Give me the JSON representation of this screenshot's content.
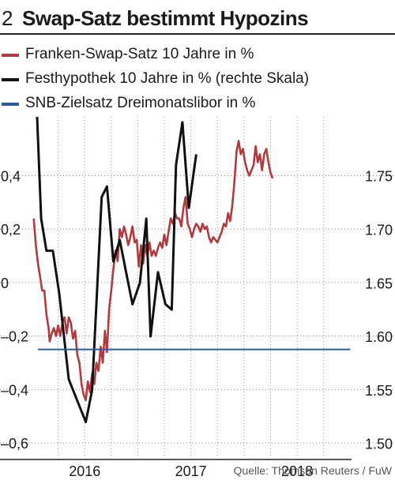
{
  "header": {
    "number": "2",
    "title": "Swap-Satz bestimmt Hypozins"
  },
  "legend": [
    {
      "label": "Franken-Swap-Satz 10 Jahre in %",
      "color": "#b03a3e"
    },
    {
      "label": "Festhypothek 10 Jahre in % (rechte Skala)",
      "color": "#111111"
    },
    {
      "label": "SNB-Zielsatz Dreimonatslibor in %",
      "color": "#2b5a9e"
    }
  ],
  "source": "Quelle: Thomson Reuters / FuW",
  "chart_data": {
    "type": "line",
    "x_unit": "years",
    "xlim": [
      2015.5,
      2018.55
    ],
    "x_ticks": [
      {
        "value": 2016,
        "label": "2016"
      },
      {
        "value": 2017,
        "label": "2017"
      },
      {
        "value": 2018,
        "label": "2018"
      }
    ],
    "left_axis": {
      "ylim": [
        -0.65,
        0.62
      ],
      "ticks": [
        0.4,
        0.2,
        0,
        -0.2,
        -0.4,
        -0.6
      ],
      "tick_labels": [
        "0,4",
        "0,2",
        "0",
        "–0,2",
        "–0,4",
        "–0,6"
      ]
    },
    "right_axis": {
      "ylim": [
        1.488,
        1.805
      ],
      "ticks": [
        1.75,
        1.7,
        1.65,
        1.6,
        1.55,
        1.5
      ],
      "tick_labels": [
        "1.75",
        "1.70",
        "1.65",
        "1.60",
        "1.55",
        "1.50"
      ]
    },
    "grid": "vertical dotted",
    "series": [
      {
        "name": "Franken-Swap-Satz 10 Jahre in %",
        "axis": "left",
        "color": "#b03a3e",
        "points": [
          [
            2015.52,
            0.24
          ],
          [
            2015.54,
            0.14
          ],
          [
            2015.56,
            0.07
          ],
          [
            2015.58,
            0.02
          ],
          [
            2015.6,
            -0.03
          ],
          [
            2015.62,
            -0.03
          ],
          [
            2015.64,
            -0.12
          ],
          [
            2015.66,
            -0.17
          ],
          [
            2015.67,
            -0.22
          ],
          [
            2015.69,
            -0.19
          ],
          [
            2015.71,
            -0.17
          ],
          [
            2015.73,
            -0.2
          ],
          [
            2015.75,
            -0.16
          ],
          [
            2015.77,
            -0.2
          ],
          [
            2015.79,
            -0.15
          ],
          [
            2015.81,
            -0.13
          ],
          [
            2015.83,
            -0.19
          ],
          [
            2015.85,
            -0.13
          ],
          [
            2015.87,
            -0.15
          ],
          [
            2015.89,
            -0.21
          ],
          [
            2015.91,
            -0.18
          ],
          [
            2015.93,
            -0.27
          ],
          [
            2015.95,
            -0.3
          ],
          [
            2015.97,
            -0.38
          ],
          [
            2015.99,
            -0.42
          ],
          [
            2016.01,
            -0.44
          ],
          [
            2016.03,
            -0.37
          ],
          [
            2016.05,
            -0.41
          ],
          [
            2016.07,
            -0.34
          ],
          [
            2016.09,
            -0.38
          ],
          [
            2016.11,
            -0.3
          ],
          [
            2016.13,
            -0.33
          ],
          [
            2016.15,
            -0.24
          ],
          [
            2016.17,
            -0.3
          ],
          [
            2016.19,
            -0.18
          ],
          [
            2016.21,
            -0.26
          ],
          [
            2016.23,
            -0.1
          ],
          [
            2016.25,
            -0.03
          ],
          [
            2016.27,
            0.05
          ],
          [
            2016.29,
            0.12
          ],
          [
            2016.31,
            0.08
          ],
          [
            2016.33,
            0.2
          ],
          [
            2016.35,
            0.17
          ],
          [
            2016.37,
            0.21
          ],
          [
            2016.39,
            0.18
          ],
          [
            2016.41,
            0.14
          ],
          [
            2016.43,
            0.17
          ],
          [
            2016.45,
            0.21
          ],
          [
            2016.47,
            0.15
          ],
          [
            2016.49,
            0.16
          ],
          [
            2016.51,
            0.06
          ],
          [
            2016.53,
            0.14
          ],
          [
            2016.55,
            0.07
          ],
          [
            2016.57,
            0.14
          ],
          [
            2016.59,
            0.1
          ],
          [
            2016.61,
            0.15
          ],
          [
            2016.63,
            0.1
          ],
          [
            2016.65,
            0.12
          ],
          [
            2016.67,
            0.1
          ],
          [
            2016.69,
            0.13
          ],
          [
            2016.71,
            0.15
          ],
          [
            2016.73,
            0.13
          ],
          [
            2016.75,
            0.18
          ],
          [
            2016.77,
            0.14
          ],
          [
            2016.79,
            0.19
          ],
          [
            2016.81,
            0.24
          ],
          [
            2016.83,
            0.22
          ],
          [
            2016.85,
            0.26
          ],
          [
            2016.87,
            0.24
          ],
          [
            2016.89,
            0.24
          ],
          [
            2016.91,
            0.21
          ],
          [
            2016.93,
            0.28
          ],
          [
            2016.95,
            0.32
          ],
          [
            2016.97,
            0.22
          ],
          [
            2016.99,
            0.2
          ],
          [
            2017.01,
            0.17
          ],
          [
            2017.03,
            0.2
          ],
          [
            2017.05,
            0.22
          ],
          [
            2017.07,
            0.21
          ],
          [
            2017.09,
            0.19
          ],
          [
            2017.11,
            0.22
          ],
          [
            2017.13,
            0.2
          ],
          [
            2017.15,
            0.21
          ],
          [
            2017.17,
            0.17
          ],
          [
            2017.19,
            0.15
          ],
          [
            2017.21,
            0.17
          ],
          [
            2017.23,
            0.16
          ],
          [
            2017.25,
            0.15
          ],
          [
            2017.27,
            0.17
          ],
          [
            2017.29,
            0.19
          ],
          [
            2017.31,
            0.22
          ],
          [
            2017.33,
            0.21
          ],
          [
            2017.35,
            0.26
          ],
          [
            2017.37,
            0.23
          ],
          [
            2017.39,
            0.29
          ],
          [
            2017.41,
            0.38
          ],
          [
            2017.43,
            0.49
          ],
          [
            2017.45,
            0.53
          ],
          [
            2017.47,
            0.48
          ],
          [
            2017.49,
            0.5
          ],
          [
            2017.51,
            0.45
          ],
          [
            2017.53,
            0.42
          ],
          [
            2017.55,
            0.4
          ],
          [
            2017.57,
            0.42
          ],
          [
            2017.59,
            0.44
          ],
          [
            2017.61,
            0.51
          ],
          [
            2017.63,
            0.45
          ],
          [
            2017.65,
            0.48
          ],
          [
            2017.67,
            0.42
          ],
          [
            2017.69,
            0.48
          ],
          [
            2017.71,
            0.5
          ],
          [
            2017.73,
            0.45
          ],
          [
            2017.75,
            0.41
          ],
          [
            2017.77,
            0.39
          ]
        ]
      },
      {
        "name": "Festhypothek 10 Jahre in % (rechte Skala)",
        "axis": "right",
        "color": "#111111",
        "points": [
          [
            2015.55,
            1.81
          ],
          [
            2015.59,
            1.71
          ],
          [
            2015.64,
            1.68
          ],
          [
            2015.7,
            1.68
          ],
          [
            2015.76,
            1.64
          ],
          [
            2015.85,
            1.56
          ],
          [
            2015.93,
            1.54
          ],
          [
            2016.01,
            1.52
          ],
          [
            2016.07,
            1.55
          ],
          [
            2016.11,
            1.63
          ],
          [
            2016.16,
            1.73
          ],
          [
            2016.21,
            1.74
          ],
          [
            2016.27,
            1.67
          ],
          [
            2016.33,
            1.69
          ],
          [
            2016.39,
            1.66
          ],
          [
            2016.45,
            1.63
          ],
          [
            2016.52,
            1.65
          ],
          [
            2016.58,
            1.71
          ],
          [
            2016.62,
            1.6
          ],
          [
            2016.69,
            1.66
          ],
          [
            2016.76,
            1.63
          ],
          [
            2016.82,
            1.625
          ],
          [
            2016.86,
            1.76
          ],
          [
            2016.92,
            1.8
          ],
          [
            2016.98,
            1.72
          ],
          [
            2017.05,
            1.77
          ]
        ]
      },
      {
        "name": "SNB-Zielsatz Dreimonatslibor in %",
        "axis": "left",
        "color": "#2b5a9e",
        "points": [
          [
            2015.56,
            -0.25
          ],
          [
            2018.5,
            -0.25
          ]
        ]
      }
    ]
  }
}
